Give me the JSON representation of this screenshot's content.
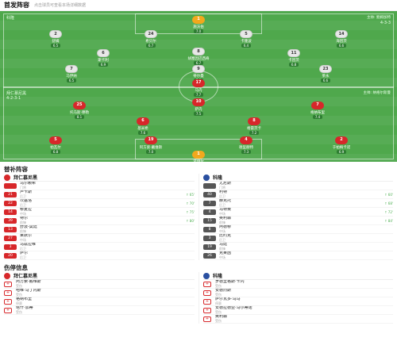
{
  "lineup_header": {
    "title": "首发阵容",
    "subtitle": "点击球员可查看本场详细数据"
  },
  "pitch": {
    "home_label": "拜仁慕尼黑",
    "away_label": "科隆",
    "home_coach": "主帅: 纳格尔斯曼",
    "away_coach": "主帅: 鲍姆加特",
    "home_formation": "4-2-3-1",
    "away_formation": "4-3-3",
    "home_players": [
      {
        "num": "1",
        "name": "诺伊尔",
        "rating": "7.1",
        "gk": true
      },
      {
        "num": "2",
        "name": "于帕梅卡诺",
        "rating": "6.9"
      },
      {
        "num": "4",
        "name": "德里赫特",
        "rating": "7.3"
      },
      {
        "num": "19",
        "name": "阿方索·戴维斯",
        "rating": "7.0"
      },
      {
        "num": "5",
        "name": "帕瓦尔",
        "rating": "6.8"
      },
      {
        "num": "6",
        "name": "基米希",
        "rating": "7.6"
      },
      {
        "num": "8",
        "name": "格雷茨卡",
        "rating": "7.2"
      },
      {
        "num": "7",
        "name": "格纳布里",
        "rating": "7.4"
      },
      {
        "num": "10",
        "name": "萨内",
        "rating": "7.5"
      },
      {
        "num": "25",
        "name": "托马斯·穆勒",
        "rating": "8.1"
      },
      {
        "num": "17",
        "name": "马内",
        "rating": "7.7"
      }
    ],
    "away_players": [
      {
        "num": "1",
        "name": "施沃伯",
        "rating": "7.0",
        "gk": true
      },
      {
        "num": "2",
        "name": "舒姆",
        "rating": "6.5"
      },
      {
        "num": "24",
        "name": "希贝尔",
        "rating": "6.7"
      },
      {
        "num": "5",
        "name": "卡隆波",
        "rating": "6.4"
      },
      {
        "num": "14",
        "name": "海因茨",
        "rating": "6.6"
      },
      {
        "num": "6",
        "name": "斯卡利",
        "rating": "6.9"
      },
      {
        "num": "8",
        "name": "胡塞因巴西奇",
        "rating": "6.7"
      },
      {
        "num": "11",
        "name": "卡因茨",
        "rating": "6.8"
      },
      {
        "num": "7",
        "name": "马伊纳",
        "rating": "6.5"
      },
      {
        "num": "9",
        "name": "蒂尔曼",
        "rating": "7.0"
      },
      {
        "num": "23",
        "name": "莱永",
        "rating": "6.6"
      }
    ]
  },
  "subs_header": {
    "title": "替补阵容"
  },
  "subs": {
    "home_team": "拜仁慕尼黑",
    "away_team": "科隆",
    "home": [
      {
        "num": "",
        "name": "乌尔赖希",
        "pos": "门将",
        "ev": ""
      },
      {
        "num": "21",
        "name": "卢卡斯",
        "pos": "后卫",
        "ev": "↑ 65'"
      },
      {
        "num": "22",
        "name": "坎塞洛",
        "pos": "后卫",
        "ev": "↑ 70'"
      },
      {
        "num": "14",
        "name": "穆夏拉",
        "pos": "中场",
        "ev": "↑ 75'"
      },
      {
        "num": "39",
        "name": "特尔",
        "pos": "前锋",
        "ev": "↑ 80'"
      },
      {
        "num": "13",
        "name": "舒波-莫廷",
        "pos": "前锋",
        "ev": ""
      },
      {
        "num": "27",
        "name": "莱默尔",
        "pos": "中场",
        "ev": ""
      },
      {
        "num": "3",
        "name": "马兹拉维",
        "pos": "后卫",
        "ev": ""
      },
      {
        "num": "20",
        "name": "萨尔",
        "pos": "后卫",
        "ev": ""
      }
    ],
    "away": [
      {
        "num": "",
        "name": "尤尼斯",
        "pos": "门将",
        "ev": ""
      },
      {
        "num": "40",
        "name": "利特",
        "pos": "后卫",
        "ev": "↑ 60'"
      },
      {
        "num": "7",
        "name": "赫克托",
        "pos": "后卫",
        "ev": "↑ 68'"
      },
      {
        "num": "4",
        "name": "马特赛",
        "pos": "中场",
        "ev": "↑ 72'"
      },
      {
        "num": "15",
        "name": "奥利森",
        "pos": "前锋",
        "ev": "↑ 84'"
      },
      {
        "num": "8",
        "name": "阿德穆",
        "pos": "中场",
        "ev": ""
      },
      {
        "num": "3",
        "name": "比约克",
        "pos": "后卫",
        "ev": ""
      },
      {
        "num": "19",
        "name": "马廷",
        "pos": "前锋",
        "ev": ""
      },
      {
        "num": "26",
        "name": "克莱因",
        "pos": "中场",
        "ev": ""
      }
    ]
  },
  "injury_header": {
    "title": "伤停信息"
  },
  "injuries": {
    "home_team": "拜仁慕尼黑",
    "away_team": "科隆",
    "home": [
      {
        "name": "阿方索·戴维斯",
        "reason": "受伤"
      },
      {
        "name": "哈维·马丁内斯",
        "reason": "受伤"
      },
      {
        "name": "格纳布里",
        "reason": "停赛"
      },
      {
        "name": "塔什·加蒂",
        "reason": "受伤"
      }
    ],
    "away": [
      {
        "name": "罗德里格斯·卡内",
        "reason": "受伤"
      },
      {
        "name": "安德烈斯",
        "reason": "受伤"
      },
      {
        "name": "萨尔瓦多·乌马",
        "reason": "停赛"
      },
      {
        "name": "安德拉德亚·马尔蒂诺",
        "reason": "受伤"
      },
      {
        "name": "奥利森",
        "reason": "受伤"
      }
    ]
  }
}
